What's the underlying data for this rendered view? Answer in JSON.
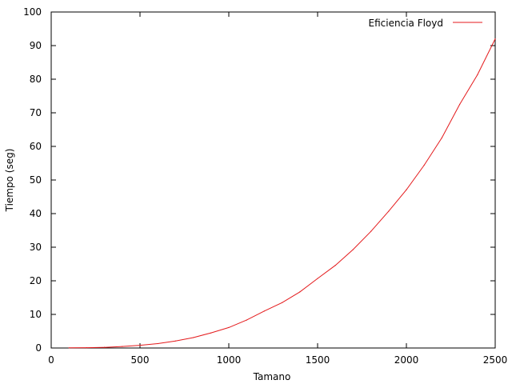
{
  "chart_data": {
    "type": "line",
    "xlabel": "Tamano",
    "ylabel": "Tiempo (seg)",
    "xlim": [
      0,
      2500
    ],
    "ylim": [
      0,
      100
    ],
    "x_ticks": [
      "0",
      "500",
      "1000",
      "1500",
      "2000",
      "2500"
    ],
    "y_ticks": [
      "0",
      "10",
      "20",
      "30",
      "40",
      "50",
      "60",
      "70",
      "80",
      "90",
      "100"
    ],
    "grid": false,
    "legend_position": "top-right",
    "series": [
      {
        "name": "Eficiencia Floyd",
        "color": "#e41a1c",
        "x": [
          100,
          200,
          300,
          400,
          500,
          600,
          700,
          800,
          900,
          1000,
          1100,
          1200,
          1300,
          1400,
          1500,
          1600,
          1700,
          1800,
          1900,
          2000,
          2100,
          2200,
          2300,
          2400,
          2500
        ],
        "y": [
          0.05,
          0.1,
          0.2,
          0.45,
          0.8,
          1.3,
          2.1,
          3.1,
          4.5,
          6.1,
          8.3,
          11.0,
          13.5,
          16.7,
          20.7,
          24.6,
          29.3,
          34.7,
          40.7,
          47.1,
          54.4,
          62.6,
          72.5,
          81.3,
          92.0
        ]
      }
    ]
  }
}
